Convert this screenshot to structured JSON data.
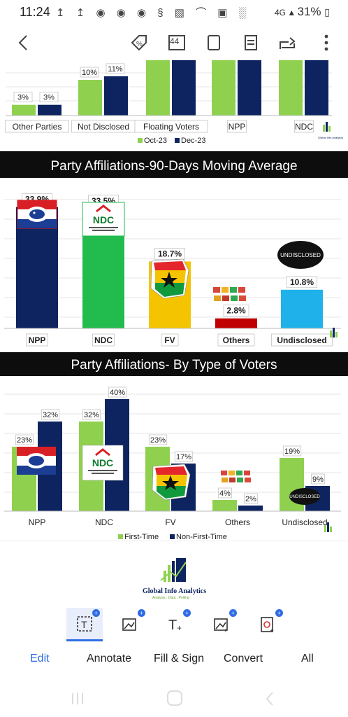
{
  "status": {
    "time": "11:24",
    "signal": "4G",
    "battery": "31%"
  },
  "toolbar": {
    "page_count_badge": "44",
    "icons": [
      "back-arrow-icon",
      "percent-tag-icon",
      "page-count-icon",
      "crop-icon",
      "reader-icon",
      "share-icon",
      "more-icon"
    ]
  },
  "chart_data": [
    {
      "type": "bar",
      "categories": [
        "Other Parties",
        "Not Disclosed",
        "Floating Voters",
        "NPP",
        "NDC"
      ],
      "series": [
        {
          "name": "Oct-23",
          "values": [
            3,
            10,
            null,
            null,
            null
          ]
        },
        {
          "name": "Dec-23",
          "values": [
            3,
            11,
            null,
            null,
            null
          ]
        }
      ],
      "data_labels": [
        "3%",
        "3%",
        "10%",
        "11%"
      ],
      "colors": {
        "Oct-23": "#8fd14f",
        "Dec-23": "#0d2461"
      }
    },
    {
      "type": "bar",
      "title": "Party Affiliations-90-Days Moving Average",
      "categories": [
        "NPP",
        "NDC",
        "FV",
        "Others",
        "Undisclosed"
      ],
      "values": [
        33.9,
        33.5,
        18.7,
        2.8,
        10.8
      ],
      "data_labels": [
        "33.9%",
        "33.5%",
        "18.7%",
        "2.8%",
        "10.8%"
      ],
      "colors": [
        "#0d2461",
        "#22bb4e",
        "#f5c400",
        "#c00000",
        "#1fb2ea"
      ],
      "ylim": [
        0,
        36
      ]
    },
    {
      "type": "bar",
      "title": "Party Affiliations- By Type of Voters",
      "categories": [
        "NPP",
        "NDC",
        "FV",
        "Others",
        "Undisclosed"
      ],
      "series": [
        {
          "name": "First-Time",
          "values": [
            23,
            32,
            23,
            4,
            19
          ]
        },
        {
          "name": "Non-First-Time",
          "values": [
            32,
            40,
            17,
            2,
            9
          ]
        }
      ],
      "data_labels_first": [
        "23%",
        "32%",
        "23%",
        "4%",
        "19%"
      ],
      "data_labels_non": [
        "32%",
        "40%",
        "17%",
        "2%",
        "9%"
      ],
      "colors": {
        "First-Time": "#8fd14f",
        "Non-First-Time": "#0d2461"
      },
      "ylim": [
        0,
        42
      ]
    }
  ],
  "logos": {
    "ndc": "NDC",
    "undisclosed": "UNDISCLOSED",
    "brand_name": "Global Info Analytics",
    "brand_tagline": "Analysis . Data . Polling"
  },
  "bottom_tools": {
    "tabs": [
      "Edit",
      "Annotate",
      "Fill & Sign",
      "Convert",
      "All"
    ],
    "active": "Edit"
  },
  "nav": {
    "icons": [
      "recents-icon",
      "home-icon",
      "back-icon"
    ]
  }
}
